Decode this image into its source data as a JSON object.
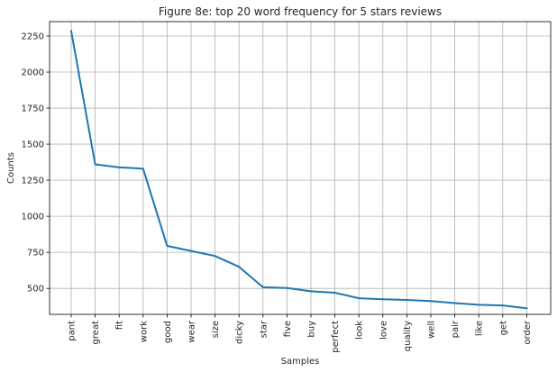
{
  "chart_data": {
    "type": "line",
    "title": "Figure 8e: top 20 word frequency for 5 stars reviews",
    "xlabel": "Samples",
    "ylabel": "Counts",
    "grid": true,
    "line_color": "#1f77b4",
    "categories": [
      "pant",
      "great",
      "fit",
      "work",
      "good",
      "wear",
      "size",
      "dicky",
      "star",
      "five",
      "buy",
      "perfect",
      "look",
      "love",
      "quality",
      "well",
      "pair",
      "like",
      "get",
      "order"
    ],
    "values": [
      2285,
      1360,
      1340,
      1330,
      795,
      760,
      725,
      650,
      508,
      503,
      480,
      470,
      432,
      425,
      420,
      412,
      398,
      386,
      382,
      362
    ],
    "ylim": [
      320,
      2350
    ],
    "yticks": [
      "500",
      "750",
      "1000",
      "1250",
      "1500",
      "1750",
      "2000",
      "2250"
    ]
  }
}
